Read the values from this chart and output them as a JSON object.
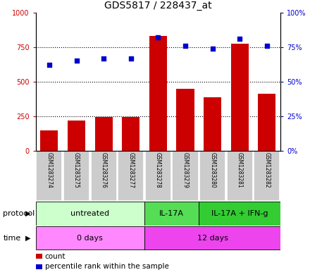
{
  "title": "GDS5817 / 228437_at",
  "samples": [
    "GSM1283274",
    "GSM1283275",
    "GSM1283276",
    "GSM1283277",
    "GSM1283278",
    "GSM1283279",
    "GSM1283280",
    "GSM1283281",
    "GSM1283282"
  ],
  "counts": [
    150,
    220,
    245,
    245,
    830,
    450,
    390,
    775,
    415
  ],
  "percentiles": [
    62,
    65,
    67,
    67,
    82,
    76,
    74,
    81,
    76
  ],
  "ylim_left": [
    0,
    1000
  ],
  "ylim_right": [
    0,
    100
  ],
  "yticks_left": [
    0,
    250,
    500,
    750,
    1000
  ],
  "yticks_right": [
    0,
    25,
    50,
    75,
    100
  ],
  "ytick_labels_left": [
    "0",
    "250",
    "500",
    "750",
    "1000"
  ],
  "ytick_labels_right": [
    "0%",
    "25%",
    "50%",
    "75%",
    "100%"
  ],
  "bar_color": "#cc0000",
  "scatter_color": "#0000cc",
  "grid_color": "#000000",
  "protocol_groups": [
    {
      "label": "untreated",
      "start": 0,
      "end": 4,
      "color": "#ccffcc"
    },
    {
      "label": "IL-17A",
      "start": 4,
      "end": 6,
      "color": "#55dd55"
    },
    {
      "label": "IL-17A + IFN-g",
      "start": 6,
      "end": 9,
      "color": "#33cc33"
    }
  ],
  "time_groups": [
    {
      "label": "0 days",
      "start": 0,
      "end": 4,
      "color": "#ff88ff"
    },
    {
      "label": "12 days",
      "start": 4,
      "end": 9,
      "color": "#ee44ee"
    }
  ],
  "sample_bg_color": "#cccccc",
  "sample_border_color": "#ffffff",
  "legend_items": [
    {
      "color": "#cc0000",
      "label": "count"
    },
    {
      "color": "#0000cc",
      "label": "percentile rank within the sample"
    }
  ],
  "title_fontsize": 10,
  "tick_label_fontsize": 7,
  "sample_label_fontsize": 5.5,
  "row_label_fontsize": 8,
  "row_text_fontsize": 8,
  "legend_fontsize": 7.5
}
